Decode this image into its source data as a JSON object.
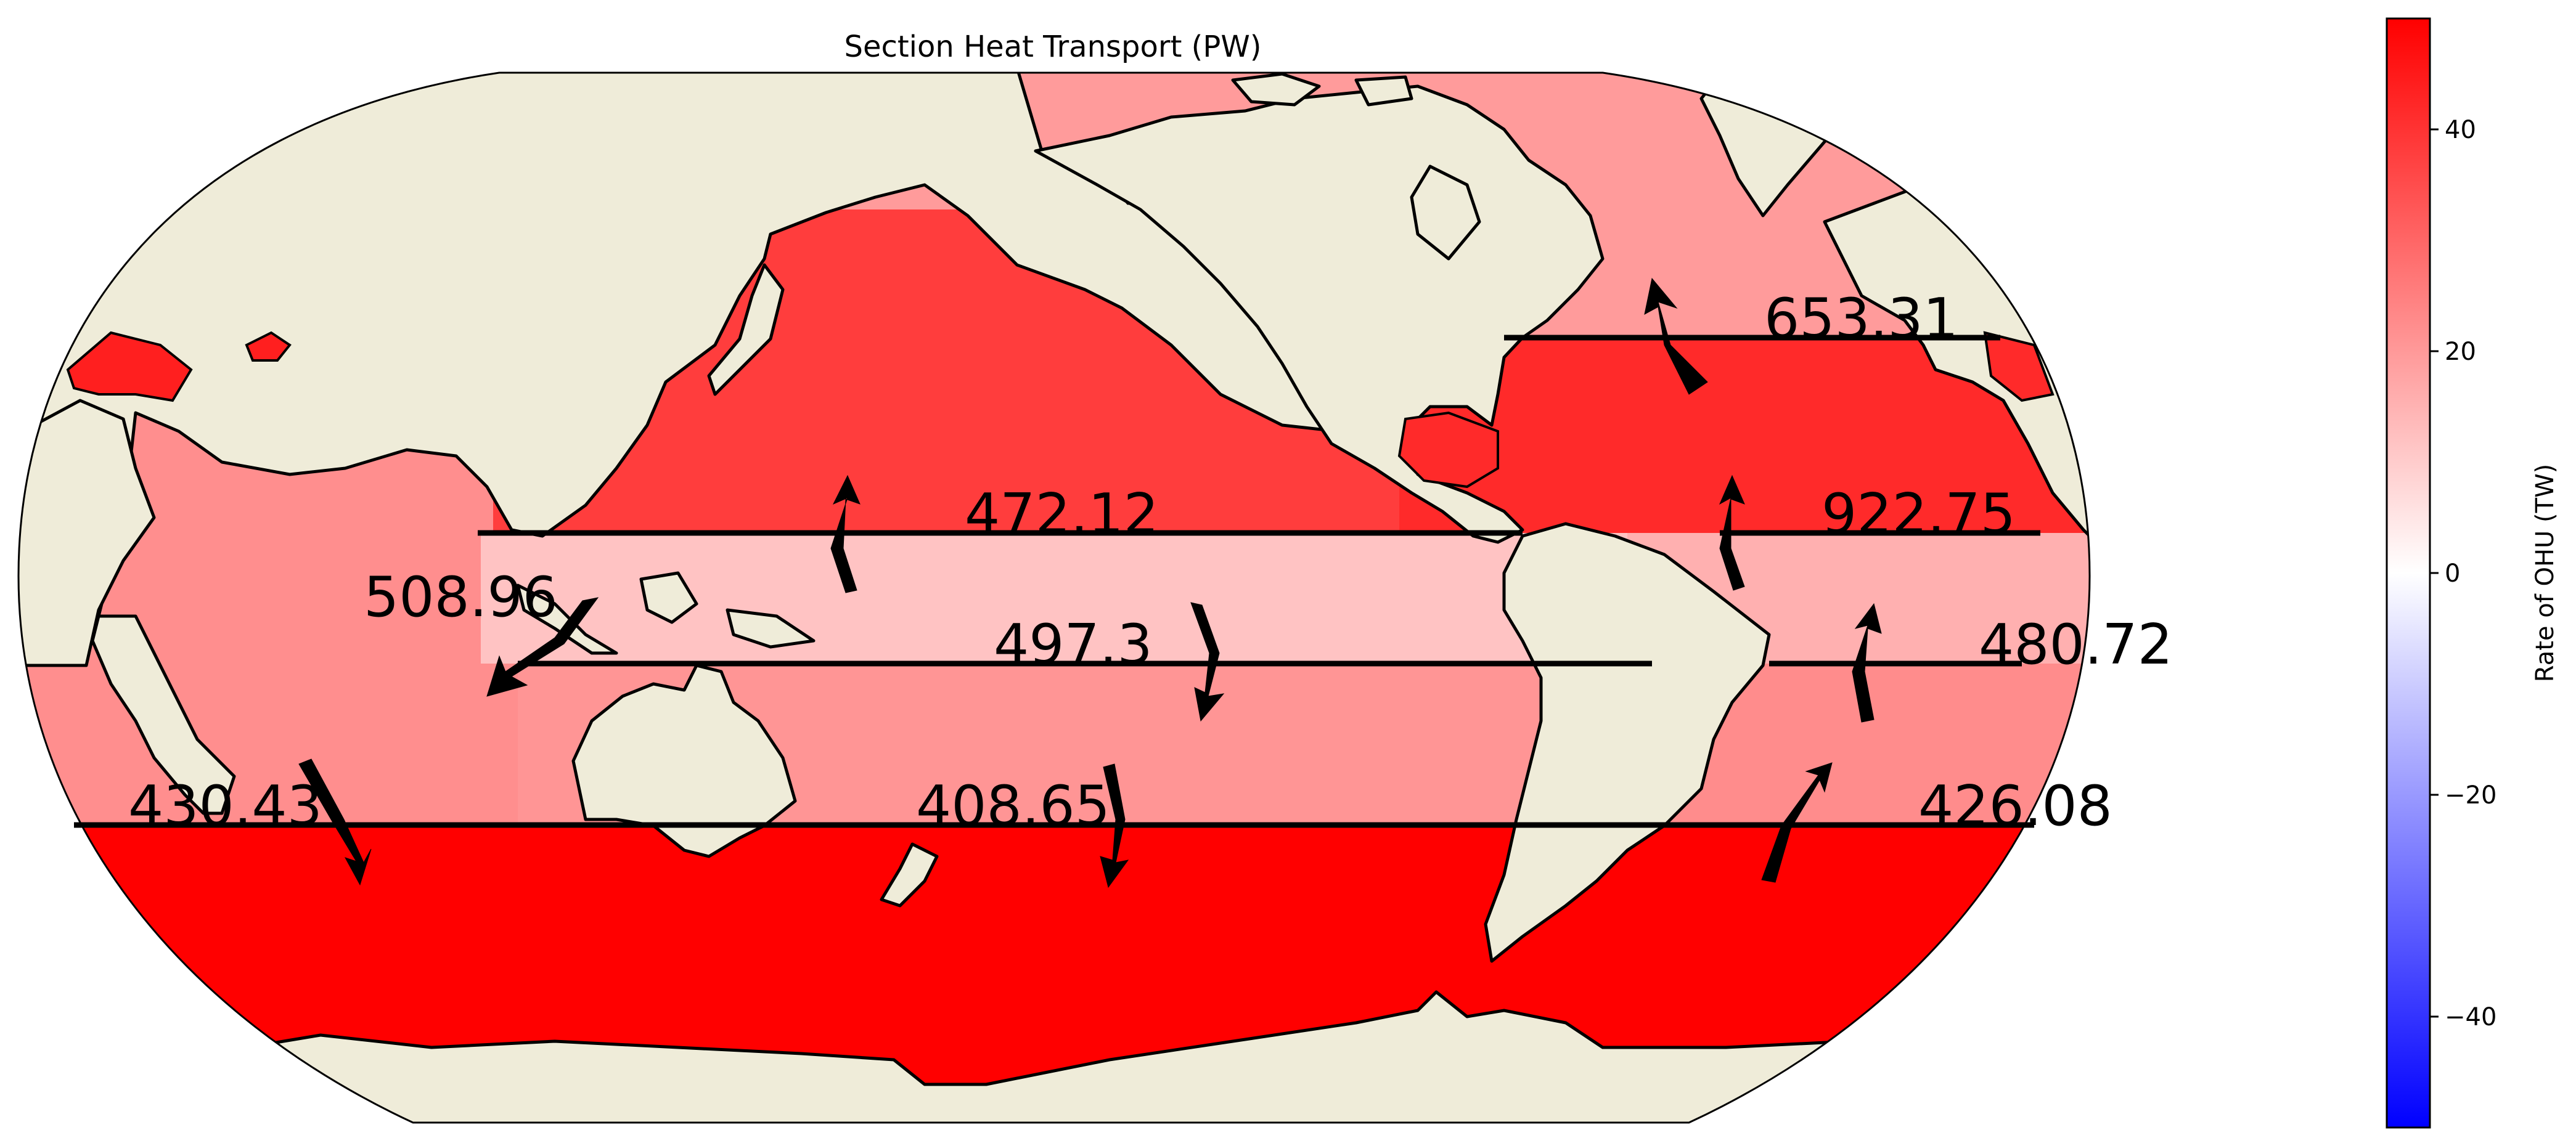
{
  "title": "Section Heat Transport (PW)",
  "colors": {
    "land": "#efecd9",
    "coast": "#000000",
    "ocean_arctic": "#ff9b9b",
    "ocean_north_pacific": "#ff3d3d",
    "ocean_north_atlantic": "#ff2a2a",
    "ocean_tropical": "#ffc3c3",
    "ocean_tropical_atlantic": "#ffb0b0",
    "ocean_south_indopacific": "#ff9595",
    "ocean_indian": "#ff8e8e",
    "ocean_south_atlantic": "#ff8c8c",
    "ocean_southern": "#ff0000",
    "ocean_med": "#ff1f1f"
  },
  "sections": [
    {
      "name": "atlantic-north",
      "label": "653.31",
      "direction": "north"
    },
    {
      "name": "pacific-north",
      "label": "472.12",
      "direction": "north"
    },
    {
      "name": "atlantic-subtropic",
      "label": "922.75",
      "direction": "north"
    },
    {
      "name": "indo-pacific-throughflow",
      "label": "508.96",
      "direction": "southwest"
    },
    {
      "name": "pacific-equator",
      "label": "497.3",
      "direction": "south"
    },
    {
      "name": "atlantic-equator",
      "label": "480.72",
      "direction": "north"
    },
    {
      "name": "indian-south",
      "label": "430.43",
      "direction": "south"
    },
    {
      "name": "pacific-south",
      "label": "408.65",
      "direction": "south"
    },
    {
      "name": "atlantic-south",
      "label": "426.08",
      "direction": "northeast"
    }
  ],
  "colorbar": {
    "label": "Rate of OHU (TW)",
    "min": -50,
    "max": 50,
    "ticks": [
      {
        "value": 40,
        "label": "40"
      },
      {
        "value": 20,
        "label": "20"
      },
      {
        "value": 0,
        "label": "0"
      },
      {
        "value": -20,
        "label": "−20"
      },
      {
        "value": -40,
        "label": "−40"
      }
    ],
    "color_low": "#0000ff",
    "color_mid": "#ffffff",
    "color_high": "#ff0000"
  }
}
